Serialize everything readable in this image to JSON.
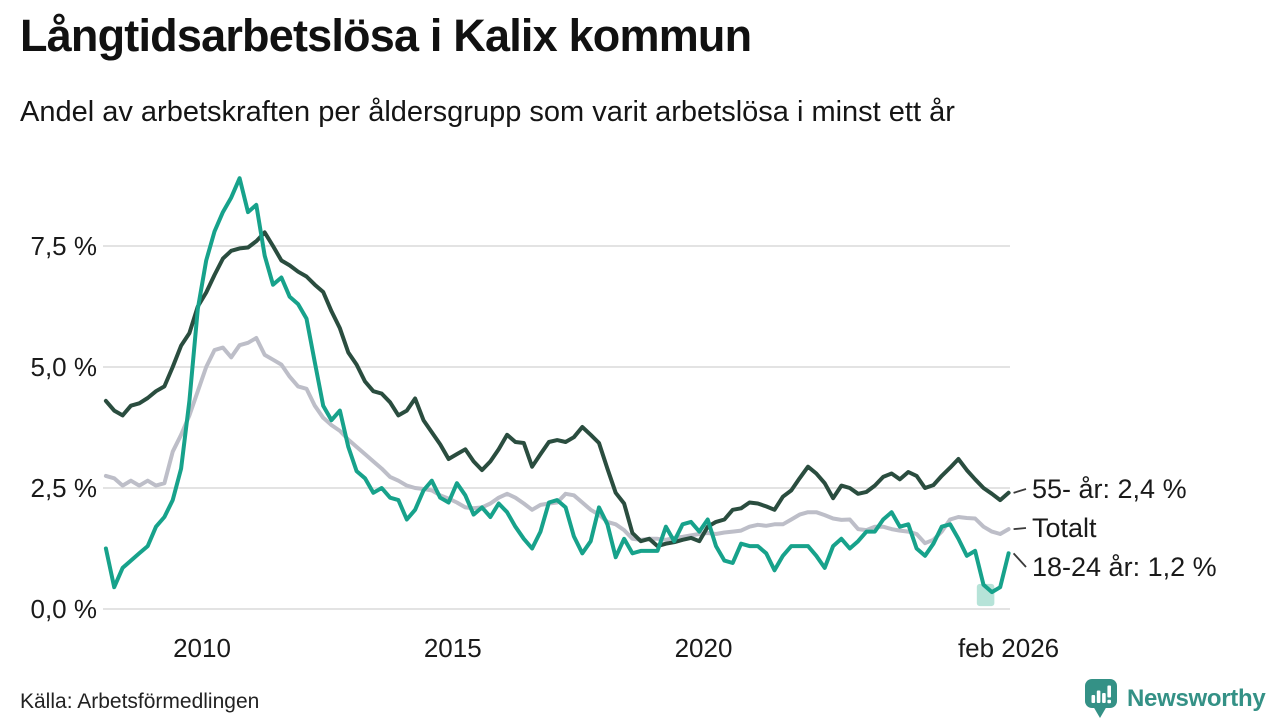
{
  "header": {
    "title": "Långtidsarbetslösa i Kalix kommun",
    "subtitle": "Andel av arbetskraften per åldersgrupp som varit arbetslösa i minst ett år"
  },
  "footer": {
    "source": "Källa: Arbetsförmedlingen",
    "brand": "Newsworthy"
  },
  "colors": {
    "series_55": "#2a4d3f",
    "series_total": "#bdbec8",
    "series_18_24": "#17a28b",
    "highlight_band": "#aee0d4",
    "gridline": "#e3e3e3",
    "connector": "#3a3a3a",
    "brand_teal": "#349186",
    "text": "#1a1a1a"
  },
  "chart_data": {
    "type": "line",
    "title": "Långtidsarbetslösa i Kalix kommun",
    "subtitle": "Andel av arbetskraften per åldersgrupp som varit arbetslösa i minst ett år",
    "xlabel": "",
    "ylabel": "",
    "grid": "horizontal",
    "legend_position": "end-of-line-labels",
    "x_start": 2008.083,
    "x_step": 0.16667,
    "xlim": [
      2008.0,
      2026.25
    ],
    "ylim": [
      0,
      9.3
    ],
    "x_ticks": [
      {
        "v": 2010,
        "label": "2010"
      },
      {
        "v": 2015,
        "label": "2015"
      },
      {
        "v": 2020,
        "label": "2020"
      },
      {
        "v": 2026.083,
        "label": "feb 2026"
      }
    ],
    "y_ticks": [
      {
        "v": 0,
        "label": "0,0 %"
      },
      {
        "v": 2.5,
        "label": "2,5 %"
      },
      {
        "v": 5,
        "label": "5,0 %"
      },
      {
        "v": 7.5,
        "label": "7,5 %"
      }
    ],
    "series": [
      {
        "name": "55- år",
        "end_label": "55- år: 2,4 %",
        "color": "#2a4d3f",
        "last_value": 2.4,
        "values": [
          4.3,
          4.1,
          4.0,
          4.2,
          4.25,
          4.36,
          4.5,
          4.6,
          5.0,
          5.44,
          5.7,
          6.25,
          6.54,
          6.9,
          7.24,
          7.4,
          7.45,
          7.47,
          7.6,
          7.78,
          7.5,
          7.2,
          7.1,
          6.97,
          6.87,
          6.7,
          6.55,
          6.15,
          5.8,
          5.3,
          5.05,
          4.7,
          4.5,
          4.45,
          4.27,
          4.0,
          4.1,
          4.35,
          3.9,
          3.65,
          3.4,
          3.1,
          3.2,
          3.3,
          3.05,
          2.87,
          3.05,
          3.3,
          3.6,
          3.45,
          3.43,
          2.94,
          3.2,
          3.45,
          3.49,
          3.45,
          3.55,
          3.76,
          3.6,
          3.43,
          2.9,
          2.4,
          2.18,
          1.57,
          1.4,
          1.45,
          1.3,
          1.35,
          1.38,
          1.43,
          1.47,
          1.4,
          1.7,
          1.8,
          1.85,
          2.05,
          2.08,
          2.2,
          2.18,
          2.12,
          2.05,
          2.32,
          2.45,
          2.7,
          2.94,
          2.8,
          2.6,
          2.29,
          2.55,
          2.5,
          2.38,
          2.42,
          2.55,
          2.73,
          2.8,
          2.68,
          2.83,
          2.75,
          2.5,
          2.56,
          2.75,
          2.92,
          3.1,
          2.87,
          2.68,
          2.5,
          2.38,
          2.25,
          2.4
        ]
      },
      {
        "name": "Totalt",
        "end_label": "Totalt",
        "color": "#bdbec8",
        "last_value": 1.65,
        "values": [
          2.75,
          2.7,
          2.55,
          2.65,
          2.55,
          2.65,
          2.55,
          2.6,
          3.25,
          3.6,
          4.0,
          4.5,
          5.0,
          5.35,
          5.4,
          5.2,
          5.45,
          5.5,
          5.6,
          5.25,
          5.15,
          5.05,
          4.8,
          4.6,
          4.55,
          4.2,
          3.95,
          3.8,
          3.68,
          3.5,
          3.35,
          3.2,
          3.05,
          2.9,
          2.73,
          2.65,
          2.55,
          2.5,
          2.48,
          2.45,
          2.35,
          2.28,
          2.2,
          2.1,
          2.08,
          2.1,
          2.18,
          2.3,
          2.38,
          2.3,
          2.18,
          2.05,
          2.15,
          2.18,
          2.2,
          2.38,
          2.35,
          2.2,
          2.05,
          1.95,
          1.8,
          1.75,
          1.63,
          1.45,
          1.43,
          1.45,
          1.45,
          1.43,
          1.47,
          1.49,
          1.52,
          1.55,
          1.57,
          1.55,
          1.58,
          1.6,
          1.62,
          1.7,
          1.74,
          1.72,
          1.75,
          1.75,
          1.85,
          1.95,
          2.0,
          2.0,
          1.94,
          1.87,
          1.84,
          1.85,
          1.65,
          1.63,
          1.7,
          1.7,
          1.65,
          1.62,
          1.6,
          1.55,
          1.36,
          1.43,
          1.6,
          1.85,
          1.9,
          1.88,
          1.87,
          1.7,
          1.6,
          1.55,
          1.65
        ]
      },
      {
        "name": "18-24 år",
        "end_label": "18-24 år: 1,2 %",
        "color": "#17a28b",
        "last_value": 1.2,
        "values": [
          1.25,
          0.45,
          0.85,
          1.0,
          1.15,
          1.3,
          1.7,
          1.9,
          2.25,
          2.9,
          4.3,
          6.2,
          7.2,
          7.8,
          8.2,
          8.5,
          8.9,
          8.2,
          8.35,
          7.3,
          6.7,
          6.85,
          6.45,
          6.3,
          6.0,
          5.1,
          4.2,
          3.9,
          4.1,
          3.35,
          2.85,
          2.7,
          2.4,
          2.5,
          2.3,
          2.25,
          1.85,
          2.05,
          2.45,
          2.65,
          2.3,
          2.2,
          2.6,
          2.35,
          1.95,
          2.1,
          1.9,
          2.18,
          2.0,
          1.7,
          1.45,
          1.25,
          1.6,
          2.2,
          2.25,
          2.1,
          1.5,
          1.15,
          1.4,
          2.1,
          1.75,
          1.07,
          1.45,
          1.15,
          1.2,
          1.2,
          1.2,
          1.7,
          1.4,
          1.75,
          1.8,
          1.6,
          1.85,
          1.3,
          1.0,
          0.95,
          1.35,
          1.3,
          1.3,
          1.15,
          0.8,
          1.1,
          1.3,
          1.3,
          1.3,
          1.1,
          0.85,
          1.3,
          1.45,
          1.25,
          1.4,
          1.6,
          1.6,
          1.85,
          2.0,
          1.7,
          1.75,
          1.25,
          1.1,
          1.35,
          1.7,
          1.75,
          1.45,
          1.1,
          1.2,
          0.5,
          0.35,
          0.45,
          1.15
        ]
      }
    ],
    "highlight_band": {
      "series": "18-24 år",
      "x0": 2025.45,
      "x1": 2025.8,
      "y0": 0.06,
      "y1": 0.52,
      "color": "#aee0d4"
    }
  }
}
